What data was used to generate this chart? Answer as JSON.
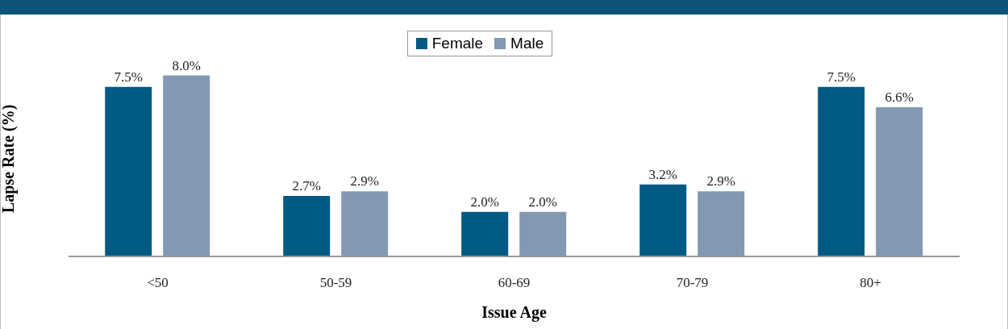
{
  "chart_data": {
    "type": "bar",
    "xlabel": "Issue Age",
    "ylabel": "Lapse Rate (%)",
    "categories": [
      "<50",
      "50-59",
      "60-69",
      "70-79",
      "80+"
    ],
    "series": [
      {
        "name": "Female",
        "color": "#005a84",
        "values": [
          7.5,
          2.7,
          2.0,
          3.2,
          7.5
        ],
        "value_labels": [
          "7.5%",
          "2.7%",
          "2.0%",
          "3.2%",
          "7.5%"
        ]
      },
      {
        "name": "Male",
        "color": "#8399b3",
        "values": [
          8.0,
          2.9,
          2.0,
          2.9,
          6.6
        ],
        "value_labels": [
          "8.0%",
          "2.9%",
          "2.0%",
          "2.9%",
          "6.6%"
        ]
      }
    ],
    "legend": "top",
    "grid": false
  }
}
